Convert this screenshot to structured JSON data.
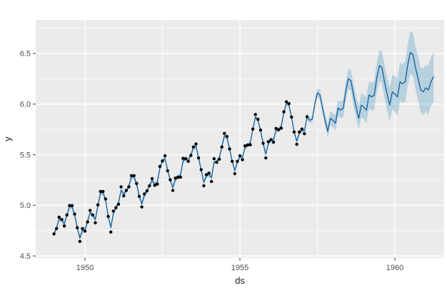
{
  "axes": {
    "x": {
      "label": "ds",
      "domain": [
        1948.41,
        1961.59
      ],
      "major_ticks": [
        {
          "value": 1950,
          "label": "1950"
        },
        {
          "value": 1955,
          "label": "1955"
        },
        {
          "value": 1960,
          "label": "1960"
        }
      ],
      "minor_ticks": [
        1952.5,
        1957.5
      ]
    },
    "y": {
      "label": "y",
      "domain": [
        4.48,
        6.83
      ],
      "major_ticks": [
        {
          "value": 4.5,
          "label": "4.5"
        },
        {
          "value": 5.0,
          "label": "5.0"
        },
        {
          "value": 5.5,
          "label": "5.5"
        },
        {
          "value": 6.0,
          "label": "6.0"
        },
        {
          "value": 6.5,
          "label": "6.5"
        }
      ],
      "minor_ticks": [
        4.75,
        5.25,
        5.75,
        6.25,
        6.75
      ]
    }
  },
  "style": {
    "panel_bg": "#EBEBEB",
    "grid_color": "#FFFFFF",
    "line_color": "#17639F",
    "ribbon_color": "#0072B2",
    "ribbon_opacity": 0.22,
    "point_color": "#000000",
    "tick_label_color": "#4D4D4D",
    "axis_title_color": "#1A1A1A",
    "tick_mark_color": "#333333"
  },
  "chart_data": {
    "type": "line",
    "description": "Prophet-style time-series forecast: observed monthly points (log scale), fitted line, and widening uncertainty ribbon",
    "xlabel": "ds",
    "ylabel": "y",
    "x_start_year": 1949,
    "points_per_year": 12,
    "observed_y": [
      4.718,
      4.771,
      4.883,
      4.86,
      4.796,
      4.905,
      4.997,
      4.997,
      4.913,
      4.779,
      4.644,
      4.771,
      4.745,
      4.836,
      4.949,
      4.905,
      4.828,
      5.004,
      5.136,
      5.136,
      5.063,
      4.89,
      4.736,
      4.942,
      4.977,
      5.011,
      5.182,
      5.094,
      5.147,
      5.182,
      5.293,
      5.293,
      5.215,
      5.088,
      4.984,
      5.112,
      5.142,
      5.193,
      5.263,
      5.198,
      5.209,
      5.384,
      5.438,
      5.489,
      5.342,
      5.252,
      5.147,
      5.268,
      5.278,
      5.278,
      5.464,
      5.46,
      5.434,
      5.493,
      5.576,
      5.606,
      5.468,
      5.352,
      5.193,
      5.303,
      5.318,
      5.236,
      5.46,
      5.425,
      5.455,
      5.576,
      5.71,
      5.68,
      5.557,
      5.434,
      5.313,
      5.434,
      5.489,
      5.451,
      5.587,
      5.595,
      5.598,
      5.753,
      5.897,
      5.849,
      5.743,
      5.613,
      5.468,
      5.628,
      5.649,
      5.624,
      5.759,
      5.746,
      5.762,
      5.924,
      6.023,
      6.004,
      5.872,
      5.724,
      5.602,
      5.724,
      5.753,
      5.707,
      5.875
    ],
    "history_ci_halfwidth": 0.025,
    "forecast_yhat": [
      5.84,
      5.85,
      6.0,
      6.11,
      6.09,
      5.96,
      5.84,
      5.73,
      5.86,
      5.84,
      5.81,
      5.96,
      5.94,
      5.96,
      6.13,
      6.25,
      6.23,
      6.09,
      5.97,
      5.86,
      5.99,
      5.97,
      5.94,
      6.09,
      6.07,
      6.09,
      6.26,
      6.38,
      6.36,
      6.22,
      6.1,
      5.99,
      6.12,
      6.1,
      6.07,
      6.22,
      6.2,
      6.22,
      6.39,
      6.51,
      6.49,
      6.36,
      6.25,
      6.14,
      6.12,
      6.16,
      6.14,
      6.22,
      6.27
    ],
    "forecast_lower": [
      5.81,
      5.82,
      5.96,
      6.07,
      6.04,
      5.91,
      5.78,
      5.67,
      5.79,
      5.77,
      5.74,
      5.88,
      5.86,
      5.87,
      6.04,
      6.15,
      6.13,
      5.98,
      5.86,
      5.75,
      5.87,
      5.85,
      5.81,
      5.96,
      5.93,
      5.95,
      6.11,
      6.23,
      6.2,
      6.06,
      5.94,
      5.82,
      5.95,
      5.92,
      5.89,
      6.03,
      6.01,
      6.02,
      6.19,
      6.3,
      6.28,
      6.15,
      6.03,
      5.92,
      5.89,
      5.93,
      5.9,
      5.98,
      6.02
    ],
    "forecast_upper": [
      5.87,
      5.88,
      6.04,
      6.15,
      6.14,
      6.01,
      5.9,
      5.79,
      5.93,
      5.91,
      5.89,
      6.04,
      6.02,
      6.05,
      6.22,
      6.35,
      6.33,
      6.2,
      6.08,
      5.98,
      6.11,
      6.09,
      6.07,
      6.22,
      6.21,
      6.23,
      6.41,
      6.53,
      6.52,
      6.38,
      6.27,
      6.16,
      6.29,
      6.28,
      6.25,
      6.41,
      6.39,
      6.42,
      6.59,
      6.72,
      6.7,
      6.57,
      6.47,
      6.36,
      6.35,
      6.39,
      6.38,
      6.46,
      6.52
    ]
  }
}
